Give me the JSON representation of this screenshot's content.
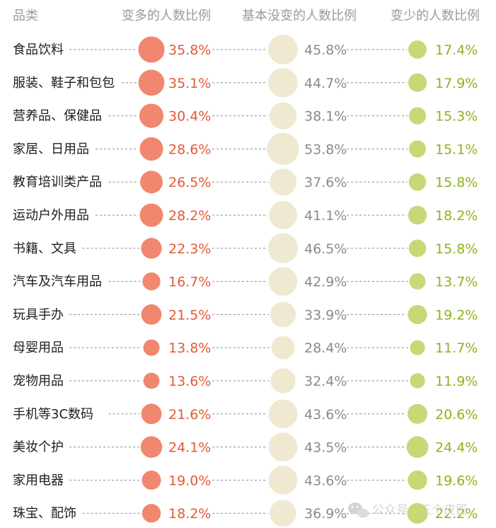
{
  "chart_data": {
    "type": "table",
    "headers": {
      "category": "品类",
      "more": "变多的人数比例",
      "same": "基本没变的人数比例",
      "less": "变少的人数比例"
    },
    "rows": [
      {
        "category": "食品饮料",
        "more": 35.8,
        "same": 45.8,
        "less": 17.4
      },
      {
        "category": "服装、鞋子和包包",
        "more": 35.1,
        "same": 44.7,
        "less": 17.9
      },
      {
        "category": "营养品、保健品",
        "more": 30.4,
        "same": 38.1,
        "less": 15.3
      },
      {
        "category": "家居、日用品",
        "more": 28.6,
        "same": 53.8,
        "less": 15.1
      },
      {
        "category": "教育培训类产品",
        "more": 26.5,
        "same": 37.6,
        "less": 15.8
      },
      {
        "category": "运动户外用品",
        "more": 28.2,
        "same": 41.1,
        "less": 18.2
      },
      {
        "category": "书籍、文具",
        "more": 22.3,
        "same": 46.5,
        "less": 15.8
      },
      {
        "category": "汽车及汽车用品",
        "more": 16.7,
        "same": 42.9,
        "less": 13.7
      },
      {
        "category": "玩具手办",
        "more": 21.5,
        "same": 33.9,
        "less": 19.2
      },
      {
        "category": "母婴用品",
        "more": 13.8,
        "same": 28.4,
        "less": 11.7
      },
      {
        "category": "宠物用品",
        "more": 13.6,
        "same": 32.4,
        "less": 11.9
      },
      {
        "category": "手机等3C数码",
        "more": 21.6,
        "same": 43.6,
        "less": 20.6
      },
      {
        "category": "美妆个护",
        "more": 24.1,
        "same": 43.5,
        "less": 24.4
      },
      {
        "category": "家用电器",
        "more": 19.0,
        "same": 43.6,
        "less": 19.6
      },
      {
        "category": "珠宝、配饰",
        "more": 18.2,
        "same": 36.9,
        "less": 22.2
      }
    ],
    "colors": {
      "more": "#f0876e",
      "more_text": "#e05a32",
      "same": "#efe9d2",
      "same_text": "#8a8a8a",
      "less": "#c6d977",
      "less_text": "#8db21f"
    },
    "value_suffix": "%"
  },
  "watermark": {
    "text": "公众号 · 三个皮匠",
    "icon": "wechat-icon"
  }
}
